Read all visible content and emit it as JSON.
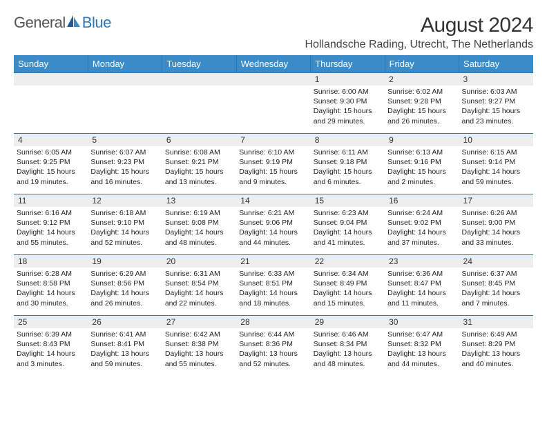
{
  "logo": {
    "text1": "General",
    "text2": "Blue"
  },
  "title": "August 2024",
  "location": "Hollandsche Rading, Utrecht, The Netherlands",
  "colors": {
    "header_bg": "#3b8bc9",
    "header_border": "#2a78b8",
    "daynum_bg": "#ededed",
    "text": "#222222"
  },
  "day_headers": [
    "Sunday",
    "Monday",
    "Tuesday",
    "Wednesday",
    "Thursday",
    "Friday",
    "Saturday"
  ],
  "weeks": [
    [
      {
        "day": "",
        "lines": []
      },
      {
        "day": "",
        "lines": []
      },
      {
        "day": "",
        "lines": []
      },
      {
        "day": "",
        "lines": []
      },
      {
        "day": "1",
        "lines": [
          "Sunrise: 6:00 AM",
          "Sunset: 9:30 PM",
          "Daylight: 15 hours and 29 minutes."
        ]
      },
      {
        "day": "2",
        "lines": [
          "Sunrise: 6:02 AM",
          "Sunset: 9:28 PM",
          "Daylight: 15 hours and 26 minutes."
        ]
      },
      {
        "day": "3",
        "lines": [
          "Sunrise: 6:03 AM",
          "Sunset: 9:27 PM",
          "Daylight: 15 hours and 23 minutes."
        ]
      }
    ],
    [
      {
        "day": "4",
        "lines": [
          "Sunrise: 6:05 AM",
          "Sunset: 9:25 PM",
          "Daylight: 15 hours and 19 minutes."
        ]
      },
      {
        "day": "5",
        "lines": [
          "Sunrise: 6:07 AM",
          "Sunset: 9:23 PM",
          "Daylight: 15 hours and 16 minutes."
        ]
      },
      {
        "day": "6",
        "lines": [
          "Sunrise: 6:08 AM",
          "Sunset: 9:21 PM",
          "Daylight: 15 hours and 13 minutes."
        ]
      },
      {
        "day": "7",
        "lines": [
          "Sunrise: 6:10 AM",
          "Sunset: 9:19 PM",
          "Daylight: 15 hours and 9 minutes."
        ]
      },
      {
        "day": "8",
        "lines": [
          "Sunrise: 6:11 AM",
          "Sunset: 9:18 PM",
          "Daylight: 15 hours and 6 minutes."
        ]
      },
      {
        "day": "9",
        "lines": [
          "Sunrise: 6:13 AM",
          "Sunset: 9:16 PM",
          "Daylight: 15 hours and 2 minutes."
        ]
      },
      {
        "day": "10",
        "lines": [
          "Sunrise: 6:15 AM",
          "Sunset: 9:14 PM",
          "Daylight: 14 hours and 59 minutes."
        ]
      }
    ],
    [
      {
        "day": "11",
        "lines": [
          "Sunrise: 6:16 AM",
          "Sunset: 9:12 PM",
          "Daylight: 14 hours and 55 minutes."
        ]
      },
      {
        "day": "12",
        "lines": [
          "Sunrise: 6:18 AM",
          "Sunset: 9:10 PM",
          "Daylight: 14 hours and 52 minutes."
        ]
      },
      {
        "day": "13",
        "lines": [
          "Sunrise: 6:19 AM",
          "Sunset: 9:08 PM",
          "Daylight: 14 hours and 48 minutes."
        ]
      },
      {
        "day": "14",
        "lines": [
          "Sunrise: 6:21 AM",
          "Sunset: 9:06 PM",
          "Daylight: 14 hours and 44 minutes."
        ]
      },
      {
        "day": "15",
        "lines": [
          "Sunrise: 6:23 AM",
          "Sunset: 9:04 PM",
          "Daylight: 14 hours and 41 minutes."
        ]
      },
      {
        "day": "16",
        "lines": [
          "Sunrise: 6:24 AM",
          "Sunset: 9:02 PM",
          "Daylight: 14 hours and 37 minutes."
        ]
      },
      {
        "day": "17",
        "lines": [
          "Sunrise: 6:26 AM",
          "Sunset: 9:00 PM",
          "Daylight: 14 hours and 33 minutes."
        ]
      }
    ],
    [
      {
        "day": "18",
        "lines": [
          "Sunrise: 6:28 AM",
          "Sunset: 8:58 PM",
          "Daylight: 14 hours and 30 minutes."
        ]
      },
      {
        "day": "19",
        "lines": [
          "Sunrise: 6:29 AM",
          "Sunset: 8:56 PM",
          "Daylight: 14 hours and 26 minutes."
        ]
      },
      {
        "day": "20",
        "lines": [
          "Sunrise: 6:31 AM",
          "Sunset: 8:54 PM",
          "Daylight: 14 hours and 22 minutes."
        ]
      },
      {
        "day": "21",
        "lines": [
          "Sunrise: 6:33 AM",
          "Sunset: 8:51 PM",
          "Daylight: 14 hours and 18 minutes."
        ]
      },
      {
        "day": "22",
        "lines": [
          "Sunrise: 6:34 AM",
          "Sunset: 8:49 PM",
          "Daylight: 14 hours and 15 minutes."
        ]
      },
      {
        "day": "23",
        "lines": [
          "Sunrise: 6:36 AM",
          "Sunset: 8:47 PM",
          "Daylight: 14 hours and 11 minutes."
        ]
      },
      {
        "day": "24",
        "lines": [
          "Sunrise: 6:37 AM",
          "Sunset: 8:45 PM",
          "Daylight: 14 hours and 7 minutes."
        ]
      }
    ],
    [
      {
        "day": "25",
        "lines": [
          "Sunrise: 6:39 AM",
          "Sunset: 8:43 PM",
          "Daylight: 14 hours and 3 minutes."
        ]
      },
      {
        "day": "26",
        "lines": [
          "Sunrise: 6:41 AM",
          "Sunset: 8:41 PM",
          "Daylight: 13 hours and 59 minutes."
        ]
      },
      {
        "day": "27",
        "lines": [
          "Sunrise: 6:42 AM",
          "Sunset: 8:38 PM",
          "Daylight: 13 hours and 55 minutes."
        ]
      },
      {
        "day": "28",
        "lines": [
          "Sunrise: 6:44 AM",
          "Sunset: 8:36 PM",
          "Daylight: 13 hours and 52 minutes."
        ]
      },
      {
        "day": "29",
        "lines": [
          "Sunrise: 6:46 AM",
          "Sunset: 8:34 PM",
          "Daylight: 13 hours and 48 minutes."
        ]
      },
      {
        "day": "30",
        "lines": [
          "Sunrise: 6:47 AM",
          "Sunset: 8:32 PM",
          "Daylight: 13 hours and 44 minutes."
        ]
      },
      {
        "day": "31",
        "lines": [
          "Sunrise: 6:49 AM",
          "Sunset: 8:29 PM",
          "Daylight: 13 hours and 40 minutes."
        ]
      }
    ]
  ]
}
